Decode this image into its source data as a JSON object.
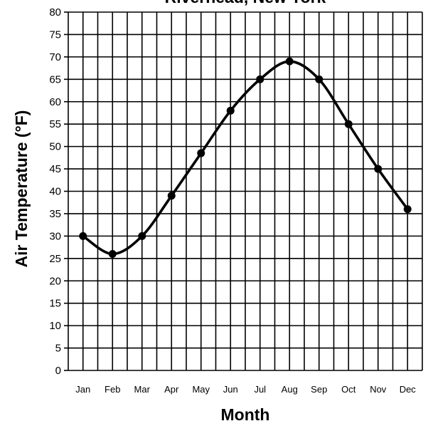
{
  "chart_data": {
    "type": "line",
    "title": "Riverhead, New York",
    "xlabel": "Month",
    "ylabel": "Air Temperature (°F)",
    "categories": [
      "Jan",
      "Feb",
      "Mar",
      "Apr",
      "May",
      "Jun",
      "Jul",
      "Aug",
      "Sep",
      "Oct",
      "Nov",
      "Dec"
    ],
    "series": [
      {
        "values": [
          30,
          26,
          30,
          39,
          48.5,
          58,
          65,
          69,
          65,
          55,
          45,
          36
        ]
      }
    ],
    "ylim": [
      0,
      80
    ],
    "yticks": [
      0,
      5,
      10,
      15,
      20,
      25,
      30,
      35,
      40,
      45,
      50,
      55,
      60,
      65,
      70,
      75,
      80
    ],
    "grid": true,
    "legend": "none",
    "colors": {
      "line": "#000000",
      "grid": "#000000",
      "background": "#ffffff"
    }
  }
}
